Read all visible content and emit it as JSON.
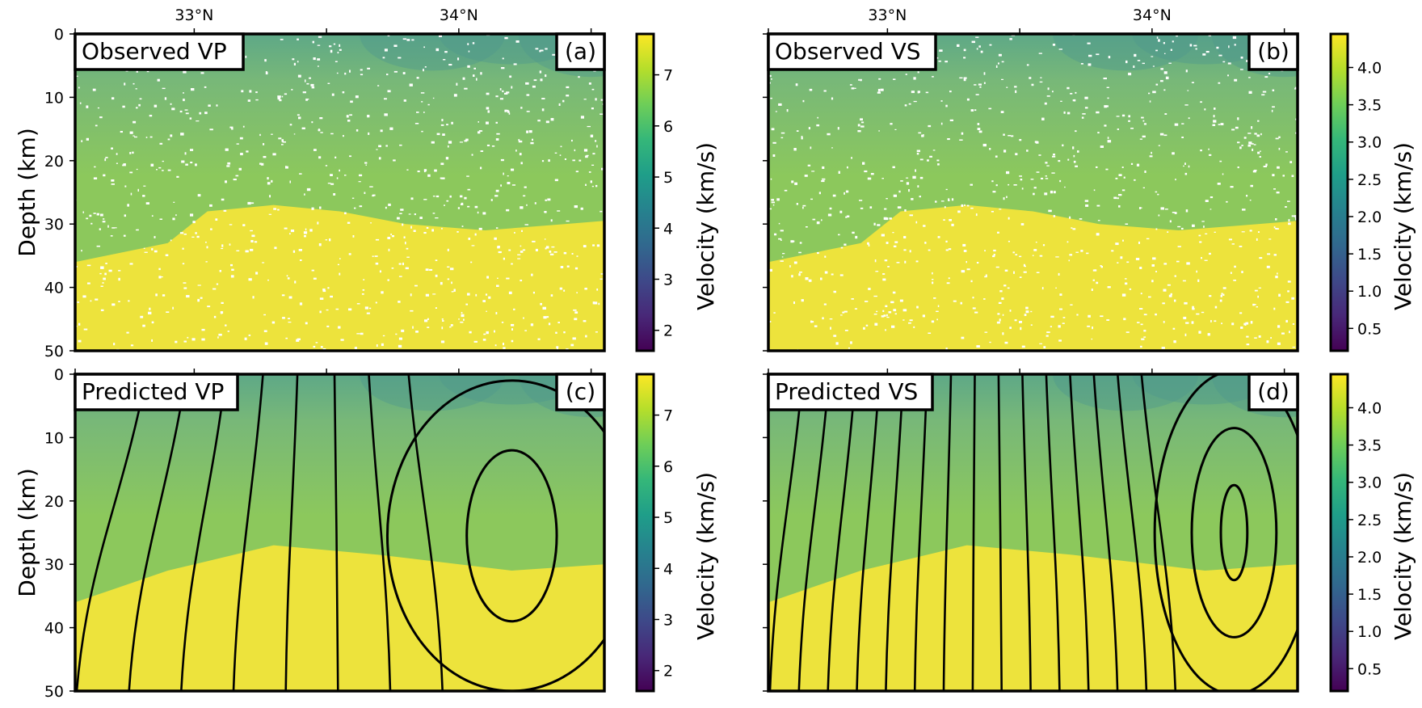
{
  "colors": {
    "viridis": [
      "#440154",
      "#482878",
      "#3e4989",
      "#31688e",
      "#26828e",
      "#1f9e89",
      "#35b779",
      "#6ece58",
      "#b5de2b",
      "#fde725"
    ],
    "shallow": "#5ea887",
    "crust": "#8cc85c",
    "mantle": "#ede33c",
    "contour": "#000000"
  },
  "chart_data": [
    {
      "type": "heatmap",
      "id": "a",
      "title": "Observed VP",
      "panel_label": "(a)",
      "xlabel": "",
      "ylabel": "Depth (km)",
      "xlim": [
        32.55,
        34.55
      ],
      "x_ticks": [
        33,
        34
      ],
      "x_tick_labels": [
        "33°N",
        "34°N"
      ],
      "x_minor_ticks": [
        32.55,
        33.5,
        34.5
      ],
      "ylim": [
        50,
        0
      ],
      "y_ticks": [
        0,
        10,
        20,
        30,
        40,
        50
      ],
      "y_tick_labels": [
        "0",
        "10",
        "20",
        "30",
        "40",
        "50"
      ],
      "colorbar": {
        "label": "Velocity (km/s)",
        "range": [
          1.6,
          7.8
        ],
        "ticks": [
          2,
          3,
          4,
          5,
          6,
          7
        ],
        "tick_labels": [
          "2",
          "3",
          "4",
          "5",
          "6",
          "7"
        ]
      },
      "moho_depth_km": [
        [
          32.55,
          36
        ],
        [
          32.9,
          33
        ],
        [
          33.05,
          28
        ],
        [
          33.3,
          27
        ],
        [
          33.55,
          28
        ],
        [
          33.8,
          30
        ],
        [
          34.1,
          31
        ],
        [
          34.4,
          30
        ],
        [
          34.55,
          29.5
        ]
      ],
      "shallow_low_velocity_km": [
        [
          33.9,
          4
        ],
        [
          34.2,
          3
        ],
        [
          34.5,
          5
        ]
      ],
      "contours": []
    },
    {
      "type": "heatmap",
      "id": "b",
      "title": "Observed VS",
      "panel_label": "(b)",
      "xlabel": "",
      "ylabel": "",
      "xlim": [
        32.55,
        34.55
      ],
      "x_ticks": [
        33,
        34
      ],
      "x_tick_labels": [
        "33°N",
        "34°N"
      ],
      "x_minor_ticks": [
        32.55,
        33.5,
        34.5
      ],
      "ylim": [
        50,
        0
      ],
      "y_ticks": [
        0,
        10,
        20,
        30,
        40,
        50
      ],
      "y_tick_labels": [
        "",
        "",
        "",
        "",
        "",
        ""
      ],
      "colorbar": {
        "label": "Velocity (km/s)",
        "range": [
          0.2,
          4.45
        ],
        "ticks": [
          0.5,
          1.0,
          1.5,
          2.0,
          2.5,
          3.0,
          3.5,
          4.0
        ],
        "tick_labels": [
          "0.5",
          "1.0",
          "1.5",
          "2.0",
          "2.5",
          "3.0",
          "3.5",
          "4.0"
        ]
      },
      "moho_depth_km": [
        [
          32.55,
          36
        ],
        [
          32.9,
          33
        ],
        [
          33.05,
          28
        ],
        [
          33.3,
          27
        ],
        [
          33.55,
          28
        ],
        [
          33.8,
          30
        ],
        [
          34.1,
          31
        ],
        [
          34.4,
          30
        ],
        [
          34.55,
          29.5
        ]
      ],
      "shallow_low_velocity_km": [
        [
          33.9,
          4
        ],
        [
          34.2,
          3
        ],
        [
          34.5,
          5
        ]
      ],
      "contours": []
    },
    {
      "type": "heatmap",
      "id": "c",
      "title": "Predicted VP",
      "panel_label": "(c)",
      "xlabel": "",
      "ylabel": "Depth (km)",
      "xlim": [
        32.55,
        34.55
      ],
      "x_ticks": [
        33,
        34
      ],
      "x_tick_labels": [
        "33°N",
        "34°N"
      ],
      "x_minor_ticks": [
        32.55,
        33.5,
        34.5
      ],
      "ylim": [
        50,
        0
      ],
      "y_ticks": [
        0,
        10,
        20,
        30,
        40,
        50
      ],
      "y_tick_labels": [
        "0",
        "10",
        "20",
        "30",
        "40",
        "50"
      ],
      "colorbar": {
        "label": "Velocity (km/s)",
        "range": [
          1.6,
          7.8
        ],
        "ticks": [
          2,
          3,
          4,
          5,
          6,
          7
        ],
        "tick_labels": [
          "2",
          "3",
          "4",
          "5",
          "6",
          "7"
        ]
      },
      "moho_depth_km": [
        [
          32.55,
          36
        ],
        [
          32.9,
          31
        ],
        [
          33.3,
          27
        ],
        [
          33.7,
          28.5
        ],
        [
          34.2,
          31
        ],
        [
          34.55,
          30
        ]
      ],
      "shallow_low_velocity_km": [
        [
          33.9,
          4
        ],
        [
          34.2,
          3
        ],
        [
          34.5,
          5
        ]
      ],
      "contours": [
        {
          "kind": "ellipse",
          "cx": 34.2,
          "cy": 25.5,
          "rx": 0.17,
          "ry": 13.5
        },
        {
          "kind": "ellipse",
          "cx": 34.2,
          "cy": 25.5,
          "rx": 0.47,
          "ry": 24.5
        },
        {
          "kind": "lines",
          "tops": [
            32.82,
            32.97,
            33.12,
            33.26,
            33.39,
            33.53,
            33.66,
            33.81
          ],
          "bottom_offset": 0.0
        }
      ]
    },
    {
      "type": "heatmap",
      "id": "d",
      "title": "Predicted VS",
      "panel_label": "(d)",
      "xlabel": "",
      "ylabel": "",
      "xlim": [
        32.55,
        34.55
      ],
      "x_ticks": [
        33,
        34
      ],
      "x_tick_labels": [
        "33°N",
        "34°N"
      ],
      "x_minor_ticks": [
        32.55,
        33.5,
        34.5
      ],
      "ylim": [
        50,
        0
      ],
      "y_ticks": [
        0,
        10,
        20,
        30,
        40,
        50
      ],
      "y_tick_labels": [
        "",
        "",
        "",
        "",
        "",
        ""
      ],
      "colorbar": {
        "label": "Velocity (km/s)",
        "range": [
          0.2,
          4.45
        ],
        "ticks": [
          0.5,
          1.0,
          1.5,
          2.0,
          2.5,
          3.0,
          3.5,
          4.0
        ],
        "tick_labels": [
          "0.5",
          "1.0",
          "1.5",
          "2.0",
          "2.5",
          "3.0",
          "3.5",
          "4.0"
        ]
      },
      "moho_depth_km": [
        [
          32.55,
          36
        ],
        [
          32.9,
          31
        ],
        [
          33.3,
          27
        ],
        [
          33.7,
          28.5
        ],
        [
          34.2,
          31
        ],
        [
          34.55,
          30
        ]
      ],
      "shallow_low_velocity_km": [
        [
          33.9,
          4
        ],
        [
          34.2,
          3
        ],
        [
          34.5,
          5
        ]
      ],
      "contours": [
        {
          "kind": "ellipse",
          "cx": 34.31,
          "cy": 25,
          "rx": 0.05,
          "ry": 7.5
        },
        {
          "kind": "ellipse",
          "cx": 34.31,
          "cy": 25,
          "rx": 0.16,
          "ry": 16.5
        },
        {
          "kind": "ellipse",
          "cx": 34.31,
          "cy": 25,
          "rx": 0.3,
          "ry": 25.5
        },
        {
          "kind": "lines",
          "tops": [
            32.68,
            32.78,
            32.88,
            32.97,
            33.06,
            33.15,
            33.24,
            33.33,
            33.42,
            33.51,
            33.6,
            33.69,
            33.78,
            33.87,
            33.96
          ],
          "bottom_offset": 0.0
        }
      ]
    }
  ]
}
